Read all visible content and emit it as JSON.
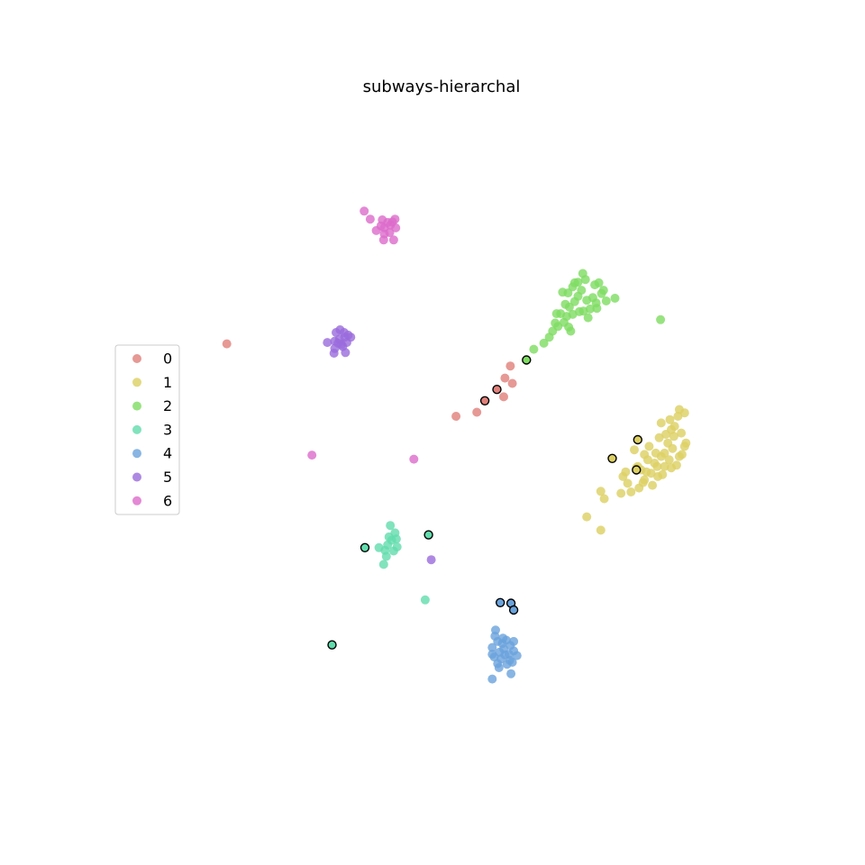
{
  "chart_data": {
    "type": "scatter",
    "title": "subways-hierarchal",
    "xlabel": "",
    "ylabel": "",
    "axes_visible": false,
    "grid": false,
    "legend_position": "center-left",
    "xlim": [
      0,
      100
    ],
    "ylim": [
      0,
      100
    ],
    "colors": {
      "0": "#e0807a",
      "1": "#dccf61",
      "2": "#7edc61",
      "3": "#61dcad",
      "4": "#6aa3dc",
      "5": "#9a6bdc",
      "6": "#dc6bcb"
    },
    "series": [
      {
        "name": "0",
        "points": [
          [
            17.7,
            64.3
          ],
          [
            60.0,
            61.0
          ],
          [
            59.2,
            59.2
          ],
          [
            60.3,
            58.4
          ],
          [
            59.0,
            56.4
          ],
          [
            55.0,
            54.1
          ],
          [
            51.9,
            53.5
          ]
        ],
        "highlighted": [
          [
            58.0,
            57.5
          ],
          [
            56.2,
            55.8
          ]
        ]
      },
      {
        "name": "1",
        "points": [
          [
            73.5,
            42.3
          ],
          [
            74.0,
            41.2
          ],
          [
            71.4,
            38.5
          ],
          [
            73.5,
            36.5
          ],
          [
            78.5,
            48.5
          ],
          [
            79.0,
            46.0
          ],
          [
            79.5,
            45.5
          ],
          [
            80.0,
            44.0
          ],
          [
            80.5,
            47.0
          ],
          [
            81.0,
            45.0
          ],
          [
            81.5,
            46.5
          ],
          [
            82.0,
            44.5
          ],
          [
            82.5,
            47.5
          ],
          [
            83.0,
            48.0
          ],
          [
            83.5,
            49.5
          ],
          [
            84.0,
            51.5
          ],
          [
            84.5,
            52.0
          ],
          [
            85.0,
            53.5
          ],
          [
            85.5,
            51.0
          ],
          [
            86.0,
            54.0
          ],
          [
            84.2,
            48.7
          ],
          [
            85.2,
            47.5
          ],
          [
            86.2,
            49.5
          ],
          [
            83.7,
            47.0
          ],
          [
            80.0,
            47.8
          ],
          [
            77.5,
            43.5
          ],
          [
            76.5,
            42.0
          ],
          [
            78.0,
            42.2
          ],
          [
            79.2,
            42.8
          ],
          [
            81.2,
            43.2
          ],
          [
            82.7,
            44.8
          ],
          [
            84.8,
            46.2
          ],
          [
            80.7,
            49.0
          ],
          [
            82.2,
            50.3
          ],
          [
            83.2,
            50.8
          ],
          [
            84.0,
            45.8
          ],
          [
            78.8,
            45.8
          ],
          [
            77.2,
            45.2
          ],
          [
            81.7,
            48.0
          ],
          [
            85.6,
            47.8
          ],
          [
            86.0,
            49.0
          ],
          [
            83.0,
            46.0
          ],
          [
            79.8,
            43.6
          ],
          [
            82.5,
            52.5
          ],
          [
            83.8,
            53.0
          ],
          [
            85.2,
            54.5
          ],
          [
            80.3,
            45.2
          ],
          [
            81.9,
            46.0
          ],
          [
            84.4,
            50.5
          ],
          [
            76.8,
            44.5
          ]
        ],
        "highlighted": [
          [
            79.0,
            50.0
          ],
          [
            75.2,
            47.2
          ],
          [
            78.8,
            45.5
          ]
        ]
      },
      {
        "name": "2",
        "points": [
          [
            82.4,
            67.9
          ],
          [
            75.6,
            71.1
          ],
          [
            73.2,
            73.4
          ],
          [
            74.3,
            70.7
          ],
          [
            73.9,
            72.3
          ],
          [
            73.6,
            71.8
          ],
          [
            72.8,
            70.4
          ],
          [
            72.3,
            71.2
          ],
          [
            71.9,
            69.5
          ],
          [
            71.4,
            70.8
          ],
          [
            70.9,
            69.2
          ],
          [
            70.6,
            72.3
          ],
          [
            70.1,
            71.4
          ],
          [
            69.6,
            70.6
          ],
          [
            69.3,
            68.7
          ],
          [
            68.8,
            69.8
          ],
          [
            68.4,
            68.4
          ],
          [
            68.0,
            67.5
          ],
          [
            67.5,
            68.8
          ],
          [
            67.1,
            66.9
          ],
          [
            66.7,
            67.4
          ],
          [
            66.3,
            66.2
          ],
          [
            65.8,
            65.3
          ],
          [
            65.0,
            64.4
          ],
          [
            63.5,
            63.5
          ],
          [
            72.6,
            73.1
          ],
          [
            71.2,
            73.9
          ],
          [
            70.1,
            73.5
          ],
          [
            69.3,
            72.8
          ],
          [
            68.6,
            71.9
          ],
          [
            70.8,
            74.8
          ],
          [
            69.6,
            73.4
          ],
          [
            68.2,
            70.2
          ],
          [
            66.9,
            68.8
          ],
          [
            69.0,
            66.2
          ],
          [
            70.3,
            69.1
          ],
          [
            71.6,
            68.2
          ],
          [
            72.9,
            69.6
          ],
          [
            67.8,
            72.0
          ],
          [
            68.7,
            66.8
          ]
        ],
        "highlighted": [
          [
            62.4,
            61.9
          ]
        ]
      },
      {
        "name": "3",
        "points": [
          [
            42.1,
            37.2
          ],
          [
            42.8,
            36.1
          ],
          [
            42.3,
            35.0
          ],
          [
            41.7,
            34.3
          ],
          [
            41.3,
            33.5
          ],
          [
            40.4,
            33.9
          ],
          [
            42.6,
            33.4
          ],
          [
            43.1,
            34.0
          ],
          [
            41.5,
            32.6
          ],
          [
            41.9,
            35.5
          ],
          [
            43.0,
            35.2
          ],
          [
            41.1,
            31.4
          ],
          [
            47.3,
            26.1
          ]
        ],
        "highlighted": [
          [
            47.8,
            35.8
          ],
          [
            38.3,
            33.9
          ],
          [
            33.4,
            19.4
          ]
        ]
      },
      {
        "name": "4",
        "points": [
          [
            57.8,
            21.6
          ],
          [
            57.7,
            20.7
          ],
          [
            58.1,
            19.9
          ],
          [
            58.8,
            19.6
          ],
          [
            59.4,
            20.1
          ],
          [
            60.0,
            19.3
          ],
          [
            59.0,
            18.8
          ],
          [
            58.4,
            18.3
          ],
          [
            57.3,
            19.0
          ],
          [
            57.6,
            17.6
          ],
          [
            58.6,
            17.3
          ],
          [
            59.9,
            17.1
          ],
          [
            60.3,
            16.8
          ],
          [
            59.5,
            16.5
          ],
          [
            58.1,
            16.6
          ],
          [
            57.3,
            18.0
          ],
          [
            60.5,
            18.5
          ],
          [
            61.0,
            17.8
          ],
          [
            60.1,
            15.1
          ],
          [
            57.3,
            14.3
          ],
          [
            58.3,
            16.0
          ],
          [
            59.2,
            17.9
          ],
          [
            60.5,
            19.9
          ],
          [
            58.9,
            20.4
          ],
          [
            59.8,
            18.0
          ]
        ],
        "highlighted": [
          [
            58.5,
            25.7
          ],
          [
            60.1,
            25.6
          ],
          [
            60.5,
            24.6
          ]
        ]
      },
      {
        "name": "5",
        "points": [
          [
            34.0,
            66.0
          ],
          [
            34.6,
            66.4
          ],
          [
            35.2,
            66.0
          ],
          [
            35.8,
            65.6
          ],
          [
            36.2,
            65.3
          ],
          [
            35.3,
            65.3
          ],
          [
            34.5,
            65.0
          ],
          [
            33.8,
            64.7
          ],
          [
            34.8,
            64.2
          ],
          [
            35.6,
            64.5
          ],
          [
            35.0,
            63.9
          ],
          [
            33.8,
            63.6
          ],
          [
            33.7,
            62.9
          ],
          [
            32.7,
            64.5
          ],
          [
            34.3,
            64.4
          ],
          [
            35.4,
            63.0
          ],
          [
            48.2,
            32.1
          ]
        ],
        "highlighted": []
      },
      {
        "name": "6",
        "points": [
          [
            38.2,
            84.1
          ],
          [
            39.1,
            82.9
          ],
          [
            40.9,
            82.8
          ],
          [
            41.7,
            82.4
          ],
          [
            42.4,
            82.5
          ],
          [
            42.8,
            82.9
          ],
          [
            42.1,
            82.0
          ],
          [
            41.2,
            81.6
          ],
          [
            40.7,
            81.9
          ],
          [
            42.9,
            81.6
          ],
          [
            41.2,
            80.7
          ],
          [
            42.0,
            80.9
          ],
          [
            42.6,
            79.8
          ],
          [
            41.1,
            79.8
          ],
          [
            30.4,
            47.7
          ],
          [
            45.6,
            47.1
          ],
          [
            40.0,
            81.2
          ]
        ],
        "highlighted": []
      }
    ]
  }
}
